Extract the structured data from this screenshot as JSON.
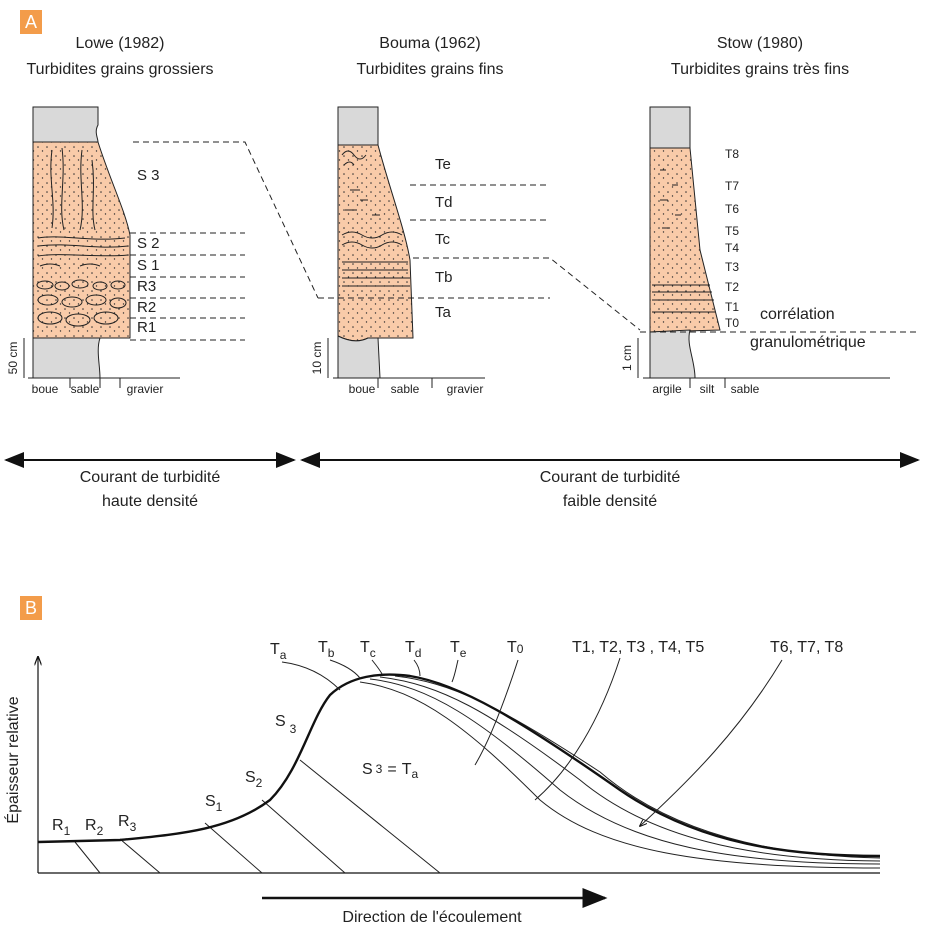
{
  "panel_a": {
    "label": "A",
    "columns": [
      {
        "title": "Lowe (1982)",
        "subtitle": "Turbidites grains grossiers",
        "scale": "50 cm",
        "axis": [
          "boue",
          "sable",
          "gravier"
        ],
        "layers": [
          "S 3",
          "S 2",
          "S 1",
          "R3",
          "R2",
          "R1"
        ]
      },
      {
        "title": "Bouma (1962)",
        "subtitle": "Turbidites grains fins",
        "scale": "10 cm",
        "axis": [
          "boue",
          "sable",
          "gravier"
        ],
        "layers": [
          "Te",
          "Td",
          "Tc",
          "Tb",
          "Ta"
        ]
      },
      {
        "title": "Stow (1980)",
        "subtitle": "Turbidites grains très fins",
        "scale": "1 cm",
        "axis": [
          "argile",
          "silt",
          "sable"
        ],
        "layers": [
          "T8",
          "T7",
          "T6",
          "T5",
          "T4",
          "T3",
          "T2",
          "T1",
          "T0"
        ]
      }
    ],
    "correlation": [
      "corrélation",
      "granulométrique"
    ],
    "currents": [
      {
        "line1": "Courant de turbidité",
        "line2": "haute densité"
      },
      {
        "line1": "Courant de turbidité",
        "line2": "faible densité"
      }
    ]
  },
  "panel_b": {
    "label": "B",
    "y_axis": "Épaisseur relative",
    "x_axis": "Direction de l'écoulement",
    "top_labels": [
      {
        "base": "T",
        "sub": "a"
      },
      {
        "base": "T",
        "sub": "b"
      },
      {
        "base": "T",
        "sub": "c"
      },
      {
        "base": "T",
        "sub": "d"
      },
      {
        "base": "T",
        "sub": "e"
      },
      {
        "base": "T",
        "sub": "0"
      }
    ],
    "group_labels": [
      "T1, T2, T3 , T4, T5",
      "T6, T7, T8"
    ],
    "s3": {
      "base": "S",
      "sub": "3"
    },
    "equation": {
      "left": {
        "base": "S",
        "sub": "3"
      },
      "op": "=",
      "right": {
        "base": "T",
        "sub": "a"
      }
    },
    "low_labels": [
      {
        "base": "S",
        "sub": "2"
      },
      {
        "base": "S",
        "sub": "1"
      },
      {
        "base": "R",
        "sub": "3"
      },
      {
        "base": "R",
        "sub": "2"
      },
      {
        "base": "R",
        "sub": "1"
      }
    ]
  }
}
